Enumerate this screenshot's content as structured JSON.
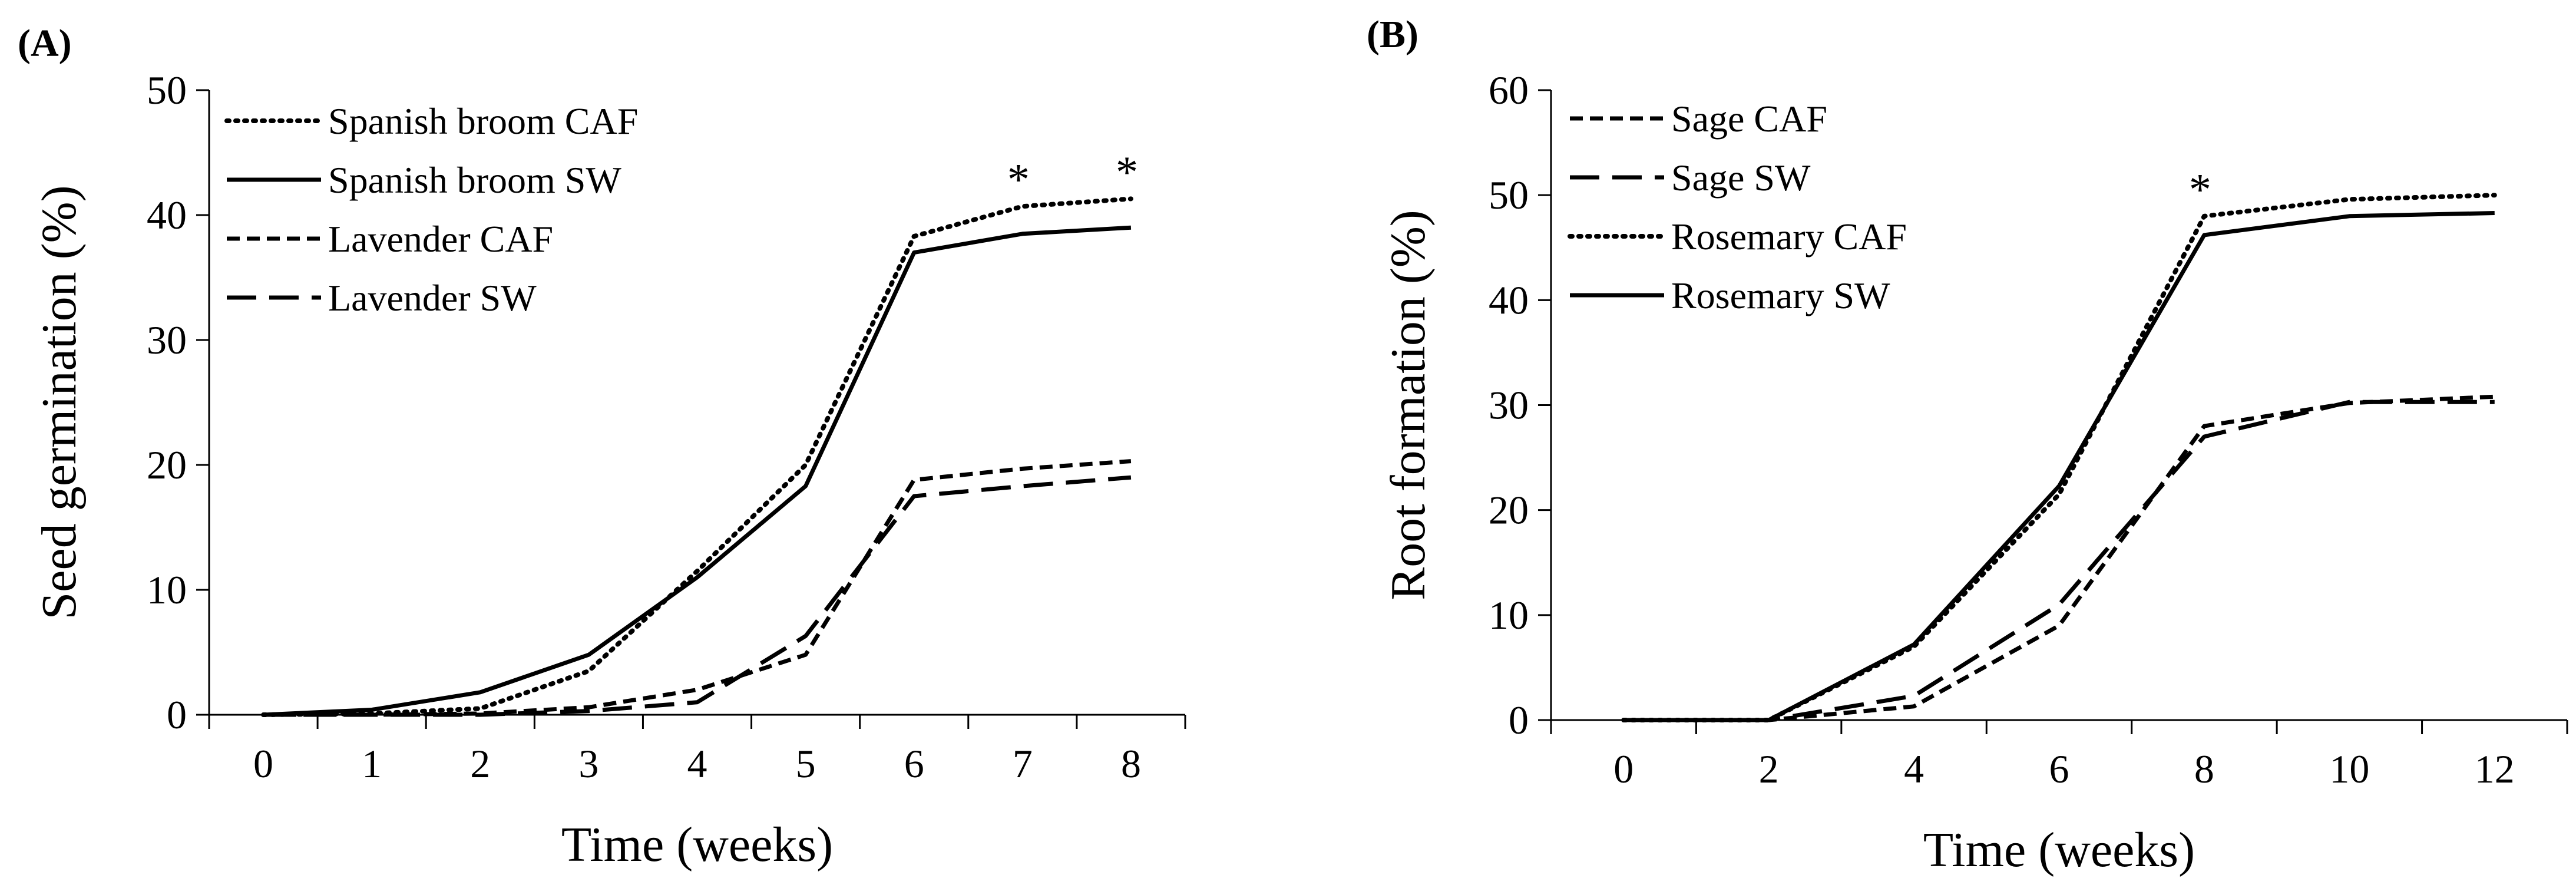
{
  "chart_data": [
    {
      "type": "line",
      "panel_label": "(A)",
      "title": "",
      "xlabel": "Time (weeks)",
      "ylabel": "Seed germination  (%)",
      "x": [
        0,
        1,
        2,
        3,
        4,
        5,
        6,
        7,
        8
      ],
      "xticks": [
        "0",
        "1",
        "2",
        "3",
        "4",
        "5",
        "6",
        "7",
        "8"
      ],
      "xlim": [
        -0.5,
        8.5
      ],
      "ylim": [
        0,
        50
      ],
      "yticks": [
        0,
        10,
        20,
        30,
        40,
        50
      ],
      "grid": false,
      "legend_position": "top-left",
      "series": [
        {
          "name": "Spanish broom CAF",
          "style": "dotted",
          "values": [
            0,
            0.1,
            0.5,
            3.5,
            11.5,
            20,
            38.3,
            40.7,
            41.3
          ]
        },
        {
          "name": "Spanish broom SW",
          "style": "solid",
          "values": [
            0,
            0.4,
            1.8,
            4.8,
            11,
            18.3,
            37,
            38.5,
            39
          ]
        },
        {
          "name": "Lavender CAF",
          "style": "short-dash",
          "values": [
            0,
            0,
            0.1,
            0.6,
            2,
            4.8,
            18.8,
            19.7,
            20.3
          ]
        },
        {
          "name": "Lavender SW",
          "style": "long-dash",
          "values": [
            0,
            0,
            0,
            0.3,
            1,
            6.3,
            17.5,
            18.3,
            19
          ]
        }
      ],
      "annotations": [
        {
          "text": "*",
          "x": 7
        },
        {
          "text": "*",
          "x": 8
        }
      ]
    },
    {
      "type": "line",
      "panel_label": "(B)",
      "title": "",
      "xlabel": "Time (weeks)",
      "ylabel": "Root  formation  (%)",
      "x": [
        0,
        2,
        4,
        6,
        8,
        10,
        12
      ],
      "xticks": [
        "0",
        "2",
        "4",
        "6",
        "8",
        "10",
        "12"
      ],
      "xlim": [
        -1,
        13
      ],
      "ylim": [
        0,
        60
      ],
      "yticks": [
        0,
        10,
        20,
        30,
        40,
        50,
        60
      ],
      "grid": false,
      "legend_position": "top-left",
      "series": [
        {
          "name": "Sage CAF",
          "style": "short-dash",
          "values": [
            0,
            0,
            1.3,
            9,
            28,
            30.2,
            30.8
          ]
        },
        {
          "name": "Sage SW",
          "style": "long-dash",
          "values": [
            0,
            0,
            2.3,
            11,
            27,
            30.3,
            30.3
          ]
        },
        {
          "name": "Rosemary CAF",
          "style": "dotted",
          "values": [
            0,
            0,
            7,
            21.5,
            48,
            49.6,
            50
          ]
        },
        {
          "name": "Rosemary SW",
          "style": "solid",
          "values": [
            0,
            0,
            7.2,
            22.3,
            46.2,
            48,
            48.3
          ]
        }
      ],
      "annotations": [
        {
          "text": "*",
          "x": 8
        }
      ]
    }
  ]
}
